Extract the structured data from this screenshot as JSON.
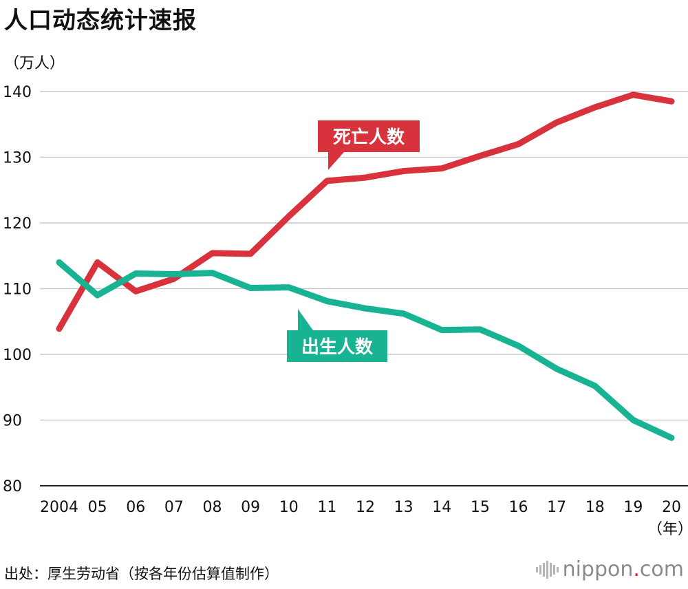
{
  "header": {
    "title": "人口动态统计速报",
    "unit": "（万人）"
  },
  "footer": {
    "source": "出处：厚生劳动省（按各年份估算值制作）",
    "logo_main": "nippon",
    "logo_dot": ".",
    "logo_tld": "com"
  },
  "chart_data": {
    "type": "line",
    "title": "人口动态统计速报",
    "ylabel": "（万人）",
    "xlabel": "（年）",
    "ylim": [
      80,
      140
    ],
    "yticks": [
      80,
      90,
      100,
      110,
      120,
      130,
      140
    ],
    "categories": [
      "2004",
      "05",
      "06",
      "07",
      "08",
      "09",
      "10",
      "11",
      "12",
      "13",
      "14",
      "15",
      "16",
      "17",
      "18",
      "19",
      "20"
    ],
    "series": [
      {
        "name": "死亡人数",
        "color": "#d8333c",
        "values": [
          103.9,
          114.0,
          109.6,
          111.5,
          115.4,
          115.3,
          121.0,
          126.4,
          126.9,
          127.9,
          128.3,
          130.2,
          132.0,
          135.3,
          137.6,
          139.5,
          138.5
        ]
      },
      {
        "name": "出生人数",
        "color": "#17b393",
        "values": [
          114.0,
          109.0,
          112.3,
          112.2,
          112.4,
          110.1,
          110.2,
          108.1,
          107.0,
          106.2,
          103.7,
          103.8,
          101.3,
          97.8,
          95.2,
          90.0,
          87.3
        ]
      }
    ],
    "year_suffix": "（年）",
    "grid": true
  }
}
